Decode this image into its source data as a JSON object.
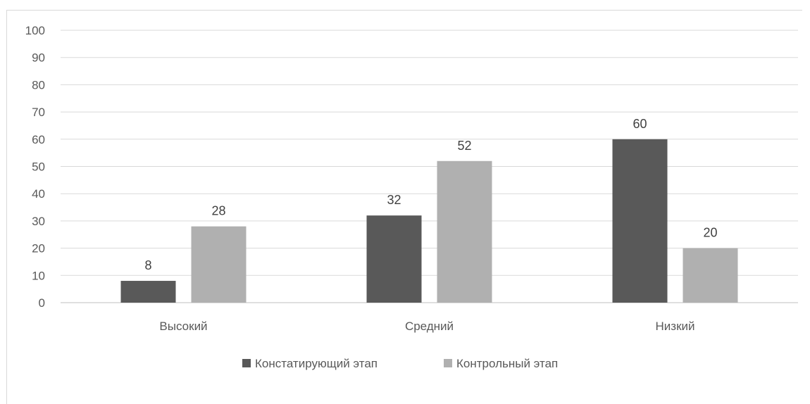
{
  "chart_data": {
    "type": "bar",
    "categories": [
      "Высокий",
      "Средний",
      "Низкий"
    ],
    "series": [
      {
        "name": "Констатирующий этап",
        "values": [
          8,
          32,
          60
        ],
        "color": "#595959"
      },
      {
        "name": "Контрольный этап",
        "values": [
          28,
          52,
          20
        ],
        "color": "#b0b0b0"
      }
    ],
    "ylim": [
      0,
      100
    ],
    "yticks": [
      0,
      10,
      20,
      30,
      40,
      50,
      60,
      70,
      80,
      90,
      100
    ],
    "grid": true,
    "legend": "bottom",
    "data_labels": true
  }
}
